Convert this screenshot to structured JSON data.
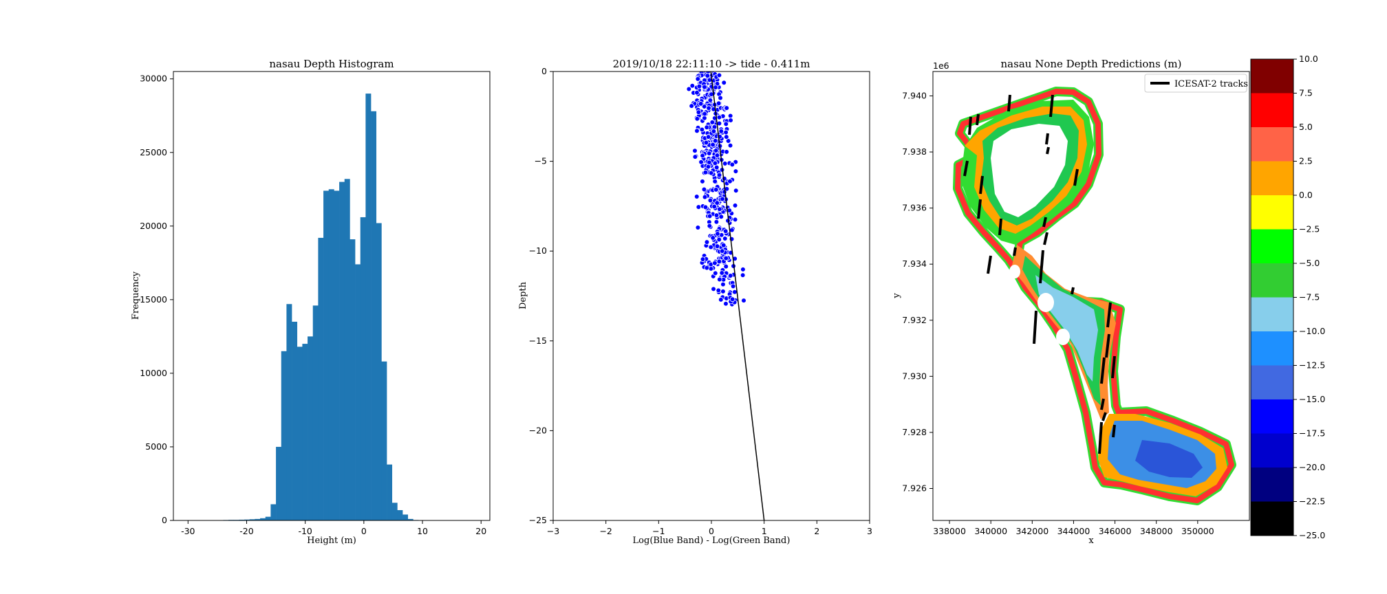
{
  "chart_data": [
    {
      "type": "bar",
      "title": "nasau  Depth Histogram",
      "xlabel": "Height (m)",
      "ylabel": "Frequency",
      "xlim": [
        -32.5,
        21.5
      ],
      "ylim": [
        0,
        30500
      ],
      "xticks": [
        -30,
        -20,
        -10,
        0,
        10,
        20
      ],
      "yticks": [
        0,
        5000,
        10000,
        15000,
        20000,
        25000,
        30000
      ],
      "bin_width": 0.9,
      "bin_starts": [
        -24,
        -23.1,
        -22.2,
        -21.3,
        -20.4,
        -19.5,
        -18.6,
        -17.7,
        -16.8,
        -15.9,
        -15,
        -14.1,
        -13.2,
        -12.3,
        -11.4,
        -10.5,
        -9.6,
        -8.7,
        -7.8,
        -6.9,
        -6,
        -5.1,
        -4.2,
        -3.3,
        -2.4,
        -1.5,
        -0.6,
        0.3,
        1.2,
        2.1,
        3,
        3.9,
        4.8,
        5.7,
        6.6,
        7.5,
        8.4,
        9.3
      ],
      "values": [
        30,
        40,
        40,
        50,
        60,
        80,
        100,
        150,
        250,
        1100,
        5000,
        11500,
        14700,
        13500,
        11800,
        12000,
        12500,
        14600,
        19200,
        22400,
        22500,
        22400,
        23000,
        23200,
        19100,
        17400,
        20600,
        29000,
        27800,
        20200,
        10800,
        3800,
        1200,
        700,
        400,
        100,
        30,
        10
      ],
      "color": "#1f77b4"
    },
    {
      "type": "scatter",
      "title": "2019/10/18 22:11:10 -> tide - 0.411m",
      "xlabel": "Log(Blue Band) - Log(Green Band)",
      "ylabel": "Depth",
      "xlim": [
        -3,
        3
      ],
      "ylim": [
        -25,
        0
      ],
      "xticks": [
        -3,
        -2,
        -1,
        0,
        1,
        2,
        3
      ],
      "yticks": [
        0,
        -5,
        -10,
        -15,
        -20,
        -25
      ],
      "point_color": "#0000ff",
      "fit_line": [
        [
          -0.01,
          0
        ],
        [
          1.0,
          -25
        ]
      ],
      "point_cloud": [
        {
          "depth_from": 0,
          "depth_to": -2,
          "x_min": -0.35,
          "x_max": 0.15,
          "count": 110
        },
        {
          "depth_from": -2,
          "depth_to": -5,
          "x_min": -0.3,
          "x_max": 0.3,
          "count": 150
        },
        {
          "depth_from": -5,
          "depth_to": -8,
          "x_min": -0.2,
          "x_max": 0.4,
          "count": 110
        },
        {
          "depth_from": -8,
          "depth_to": -11,
          "x_min": -0.15,
          "x_max": 0.45,
          "count": 90
        },
        {
          "depth_from": -11,
          "depth_to": -13,
          "x_min": 0.05,
          "x_max": 0.55,
          "count": 40
        }
      ]
    },
    {
      "type": "heatmap",
      "title": "nasau None Depth Predictions (m)",
      "xlabel": "x",
      "ylabel": "y",
      "offset_label": "1e6",
      "xlim": [
        337200,
        352500
      ],
      "ylim": [
        7.92486,
        7.94087
      ],
      "xticks": [
        338000,
        340000,
        342000,
        344000,
        346000,
        348000,
        350000
      ],
      "yticks": [
        7.926,
        7.928,
        7.93,
        7.932,
        7.934,
        7.936,
        7.938,
        7.94
      ],
      "legend": {
        "label": "ICESAT-2 tracks",
        "placement": "top-right"
      },
      "colorbar": {
        "ticks": [
          "10.0",
          "7.5",
          "5.0",
          "2.5",
          "0.0",
          "-2.5",
          "-5.0",
          "-7.5",
          "-10.0",
          "-12.5",
          "-15.0",
          "-17.5",
          "-20.0",
          "-22.5",
          "-25.0"
        ],
        "colors": [
          "#800000",
          "#ff0000",
          "#ff6347",
          "#ffa500",
          "#ffff00",
          "#00ff00",
          "#32cd32",
          "#87ceeb",
          "#1e90ff",
          "#4169e1",
          "#0000ff",
          "#0000cd",
          "#000080",
          "#000000"
        ]
      },
      "shapes": {
        "outer_color": "#32dc32",
        "shallow_color": "#ff3030",
        "orange_color": "#ffa500",
        "yellow_color": "#e8ef20",
        "mid_color": "#20c850",
        "lagoon_color": "#3c8fe6",
        "deep_color": "#2a55d8",
        "light_color": "#87ceeb",
        "hole_color": "#ffffff",
        "track_color": "#000000"
      }
    }
  ]
}
